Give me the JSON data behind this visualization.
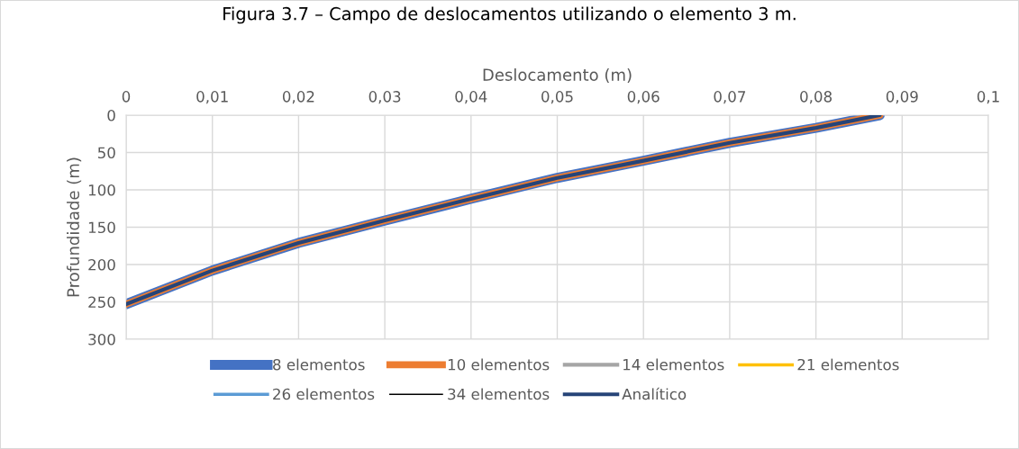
{
  "chart_data": {
    "type": "line",
    "title": "Figura 3.7 – Campo de deslocamentos utilizando o elemento 3 m.",
    "xlabel": "Deslocamento (m)",
    "ylabel": "Profundidade (m)",
    "x": [
      0,
      0.01,
      0.02,
      0.03,
      0.04,
      0.05,
      0.06,
      0.07,
      0.08,
      0.0874
    ],
    "series": [
      {
        "name": "8 elementos",
        "color": "#4472c4",
        "values": [
          253,
          208,
          171,
          141,
          112,
          84,
          61,
          37,
          17,
          0
        ]
      },
      {
        "name": "10 elementos",
        "color": "#ed7d31",
        "values": [
          253,
          208,
          171,
          141,
          112,
          84,
          61,
          37,
          17,
          0
        ]
      },
      {
        "name": "14 elementos",
        "color": "#a5a5a5",
        "values": [
          null,
          null,
          null,
          null,
          null,
          null,
          null,
          null,
          null,
          null
        ]
      },
      {
        "name": "21 elementos",
        "color": "#ffc000",
        "values": [
          null,
          null,
          null,
          null,
          null,
          null,
          null,
          null,
          null,
          null
        ]
      },
      {
        "name": "26 elementos",
        "color": "#5b9bd5",
        "values": [
          null,
          null,
          null,
          null,
          null,
          null,
          null,
          null,
          null,
          null
        ]
      },
      {
        "name": "34 elementos",
        "color": "#000000",
        "values": [
          null,
          null,
          null,
          null,
          null,
          null,
          null,
          null,
          null,
          null
        ]
      },
      {
        "name": "Analítico",
        "color": "#264478",
        "values": [
          253,
          208,
          171,
          141,
          112,
          84,
          61,
          37,
          17,
          0
        ]
      }
    ],
    "xlim": [
      0,
      0.1
    ],
    "xticks": [
      0,
      {
        "value": 0.01,
        "label": "0,01"
      },
      {
        "value": 0.02,
        "label": "0,02"
      },
      {
        "value": 0.03,
        "label": "0,03"
      },
      {
        "value": 0.04,
        "label": "0,04"
      },
      {
        "value": 0.05,
        "label": "0,05"
      },
      {
        "value": 0.06,
        "label": "0,06"
      },
      {
        "value": 0.07,
        "label": "0,07"
      },
      {
        "value": 0.08,
        "label": "0,08"
      },
      {
        "value": 0.09,
        "label": "0,09"
      },
      {
        "value": 0.1,
        "label": "0,1"
      }
    ],
    "ylim": [
      300,
      0
    ],
    "yticks": [
      0,
      50,
      100,
      150,
      200,
      250,
      300
    ],
    "grid": true,
    "legend": "bottom",
    "marker": "none",
    "line_style": "solid"
  }
}
